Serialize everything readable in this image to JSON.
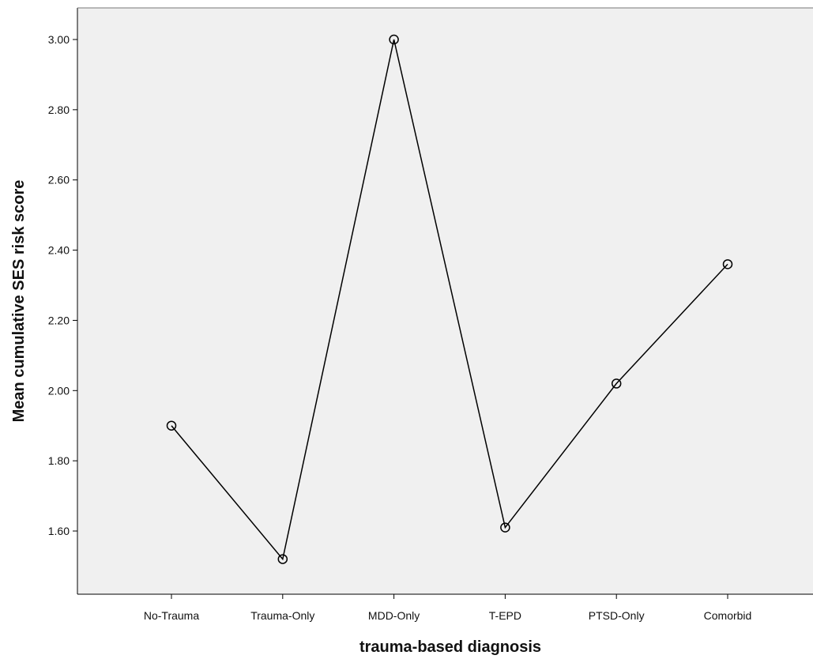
{
  "chart_data": {
    "type": "line",
    "title": "",
    "xlabel": "trauma-based diagnosis",
    "ylabel": "Mean cumulative SES risk score",
    "categories": [
      "No-Trauma",
      "Trauma-Only",
      "MDD-Only",
      "T-EPD",
      "PTSD-Only",
      "Comorbid"
    ],
    "series": [
      {
        "values": [
          1.9,
          1.52,
          3.0,
          1.61,
          2.02,
          2.36
        ]
      }
    ],
    "y_ticks": [
      "1.60",
      "1.80",
      "2.00",
      "2.20",
      "2.40",
      "2.60",
      "2.80",
      "3.00"
    ],
    "ylim": [
      1.42,
      3.09
    ],
    "grid": false,
    "marker": "open-circle",
    "colors": {
      "plot_background": "#f0f0f0",
      "line": "#000000",
      "axis": "#000000"
    }
  }
}
